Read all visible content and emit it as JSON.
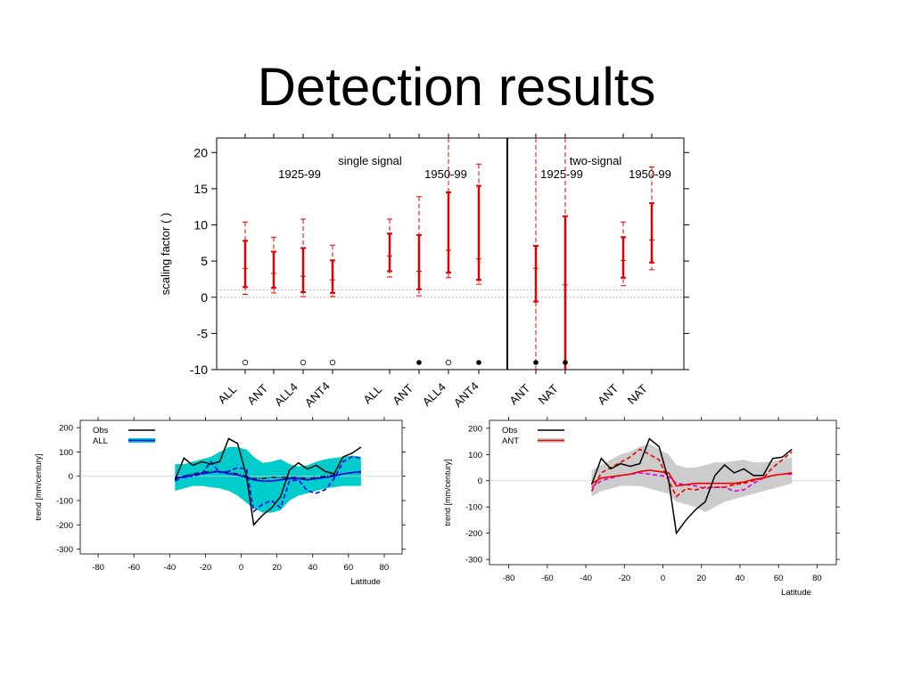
{
  "slide": {
    "title": "Detection results"
  },
  "chart_data": [
    {
      "type": "errorbar",
      "ylabel": "scaling factor (  )",
      "ylim": [
        -10,
        22
      ],
      "yticks": [
        20,
        15,
        10,
        5,
        0,
        -5,
        -10
      ],
      "panels": [
        {
          "name": "single signal",
          "periods": [
            "1925-99",
            "1950-99"
          ]
        },
        {
          "name": "two-signal",
          "periods": [
            "1925-99",
            "1950-99"
          ]
        }
      ],
      "points": [
        {
          "label": "ALL",
          "best": 4.0,
          "lo": 1.4,
          "hi": 7.8,
          "lo_outer": 0.4,
          "hi_outer": 10.4,
          "marker": "open",
          "offscale": false
        },
        {
          "label": "ANT",
          "best": 3.3,
          "lo": 1.3,
          "hi": 6.3,
          "lo_outer": 0.6,
          "hi_outer": 8.3,
          "marker": "none",
          "offscale": false
        },
        {
          "label": "ALL4",
          "best": 2.9,
          "lo": 0.7,
          "hi": 6.8,
          "lo_outer": 0.1,
          "hi_outer": 10.8,
          "marker": "open",
          "offscale": false
        },
        {
          "label": "ANT4",
          "best": 2.4,
          "lo": 0.6,
          "hi": 5.1,
          "lo_outer": 0.1,
          "hi_outer": 7.2,
          "marker": "open",
          "offscale": false
        },
        {
          "label": "ALL",
          "best": 5.7,
          "lo": 3.6,
          "hi": 8.8,
          "lo_outer": 2.8,
          "hi_outer": 10.8,
          "marker": "none",
          "offscale": false
        },
        {
          "label": "ANT",
          "best": 3.6,
          "lo": 1.1,
          "hi": 8.6,
          "lo_outer": 0.2,
          "hi_outer": 13.9,
          "marker": "filled",
          "offscale": false
        },
        {
          "label": "ALL4",
          "best": 6.5,
          "lo": 3.4,
          "hi": 14.5,
          "lo_outer": 2.7,
          "hi_outer": 22,
          "marker": "open",
          "offscale": true
        },
        {
          "label": "ANT4",
          "best": 5.3,
          "lo": 2.4,
          "hi": 15.4,
          "lo_outer": 1.8,
          "hi_outer": 18.4,
          "marker": "filled",
          "offscale": false
        },
        {
          "label": "ANT",
          "best": 4.0,
          "lo": -0.6,
          "hi": 7.1,
          "lo_outer": -10,
          "hi_outer": 22,
          "marker": "filled",
          "offscale": true
        },
        {
          "label": "NAT",
          "best": 1.7,
          "lo": -10,
          "hi": 11.2,
          "lo_outer": -10,
          "hi_outer": 22,
          "marker": "filled",
          "offscale": true
        },
        {
          "label": "ANT",
          "best": 5.1,
          "lo": 2.7,
          "hi": 8.3,
          "lo_outer": 1.6,
          "hi_outer": 10.4,
          "marker": "none",
          "offscale": false
        },
        {
          "label": "NAT",
          "best": 7.9,
          "lo": 4.8,
          "hi": 13.0,
          "lo_outer": 3.8,
          "hi_outer": 18.0,
          "marker": "none",
          "offscale": false
        }
      ]
    },
    {
      "type": "line",
      "xlabel": "Latitude",
      "ylabel": "trend [mm/century]",
      "xlim": [
        -90,
        90
      ],
      "ylim": [
        -320,
        230
      ],
      "xticks": [
        -80,
        -60,
        -40,
        -20,
        0,
        20,
        40,
        60,
        80
      ],
      "yticks": [
        200,
        100,
        0,
        -100,
        -200,
        -300
      ],
      "legend": {
        "placement": "top-left",
        "entries": [
          "Obs",
          "ALL"
        ]
      },
      "x": [
        -37,
        -32,
        -27,
        -22,
        -17,
        -12,
        -7,
        -2,
        3,
        7,
        12,
        17,
        22,
        27,
        32,
        37,
        42,
        47,
        52,
        57,
        62,
        67
      ],
      "series": [
        {
          "name": "Obs",
          "color": "#000000",
          "style": "solid",
          "values": [
            -15,
            75,
            45,
            60,
            50,
            60,
            155,
            135,
            0,
            -200,
            -160,
            -130,
            -85,
            25,
            55,
            30,
            45,
            20,
            10,
            80,
            95,
            120
          ]
        },
        {
          "name": "ALL",
          "color": "#0000ee",
          "style": "solid",
          "values": [
            -5,
            -5,
            5,
            10,
            15,
            20,
            10,
            5,
            -5,
            -15,
            -20,
            -20,
            -15,
            -10,
            -10,
            -15,
            -10,
            -5,
            0,
            10,
            15,
            20
          ]
        },
        {
          "color": "#0000ee",
          "style": "dashed",
          "values": [
            -20,
            0,
            0,
            10,
            60,
            15,
            20,
            35,
            30,
            -145,
            -115,
            -100,
            -130,
            -20,
            -15,
            -60,
            -70,
            -55,
            -10,
            60,
            80,
            75
          ]
        },
        {
          "color": "#222222",
          "style": "dash-dot",
          "values": [
            -10,
            0,
            10,
            15,
            20,
            20,
            15,
            10,
            0,
            -10,
            -10,
            -5,
            -5,
            -5,
            -5,
            -10,
            -5,
            0,
            5,
            10,
            15,
            15
          ]
        }
      ],
      "band": {
        "color": "#00cccc",
        "upper": [
          50,
          50,
          60,
          70,
          80,
          100,
          120,
          120,
          110,
          80,
          55,
          60,
          70,
          50,
          40,
          45,
          60,
          70,
          75,
          80,
          85,
          80
        ],
        "lower": [
          -60,
          -50,
          -40,
          -40,
          -45,
          -50,
          -60,
          -80,
          -110,
          -130,
          -150,
          -150,
          -140,
          -100,
          -80,
          -70,
          -60,
          -50,
          -45,
          -40,
          -40,
          -40
        ]
      }
    },
    {
      "type": "line",
      "xlabel": "Latitude",
      "ylabel": "trend [mm/century]",
      "xlim": [
        -90,
        90
      ],
      "ylim": [
        -320,
        230
      ],
      "xticks": [
        -80,
        -60,
        -40,
        -20,
        0,
        20,
        40,
        60,
        80
      ],
      "yticks": [
        200,
        100,
        0,
        -100,
        -200,
        -300
      ],
      "legend": {
        "placement": "top-left",
        "entries": [
          "Obs",
          "ANT"
        ]
      },
      "x": [
        -37,
        -32,
        -27,
        -22,
        -17,
        -12,
        -7,
        -2,
        3,
        7,
        12,
        17,
        22,
        27,
        32,
        37,
        42,
        47,
        52,
        57,
        62,
        67
      ],
      "series": [
        {
          "name": "Obs",
          "color": "#000000",
          "style": "solid",
          "values": [
            -15,
            85,
            45,
            65,
            55,
            65,
            160,
            130,
            0,
            -200,
            -150,
            -110,
            -80,
            20,
            60,
            30,
            45,
            20,
            20,
            85,
            90,
            120
          ]
        },
        {
          "name": "ANT",
          "color": "#ee0000",
          "style": "solid",
          "values": [
            -10,
            10,
            15,
            20,
            25,
            35,
            40,
            35,
            30,
            -20,
            -15,
            -10,
            -10,
            -10,
            -10,
            -10,
            -5,
            5,
            10,
            20,
            25,
            30
          ]
        },
        {
          "color": "#ee0000",
          "style": "dashed",
          "values": [
            -40,
            30,
            50,
            70,
            90,
            120,
            100,
            80,
            0,
            -60,
            -30,
            -35,
            -25,
            -25,
            -25,
            -15,
            -10,
            0,
            10,
            50,
            80,
            110
          ]
        },
        {
          "color": "#dd00dd",
          "style": "dashed",
          "values": [
            -25,
            0,
            10,
            20,
            25,
            30,
            25,
            20,
            15,
            -10,
            -15,
            -20,
            -30,
            -25,
            -25,
            -40,
            -35,
            -10,
            10,
            20,
            25,
            25
          ]
        }
      ],
      "band": {
        "color": "#cccccc",
        "upper": [
          40,
          60,
          80,
          100,
          110,
          130,
          140,
          120,
          100,
          60,
          50,
          50,
          60,
          70,
          70,
          75,
          80,
          70,
          70,
          75,
          80,
          90
        ],
        "lower": [
          -60,
          -40,
          -30,
          -20,
          -20,
          -20,
          -30,
          -40,
          -50,
          -80,
          -90,
          -100,
          -120,
          -100,
          -80,
          -70,
          -60,
          -50,
          -40,
          -30,
          -20,
          -10
        ]
      }
    }
  ]
}
